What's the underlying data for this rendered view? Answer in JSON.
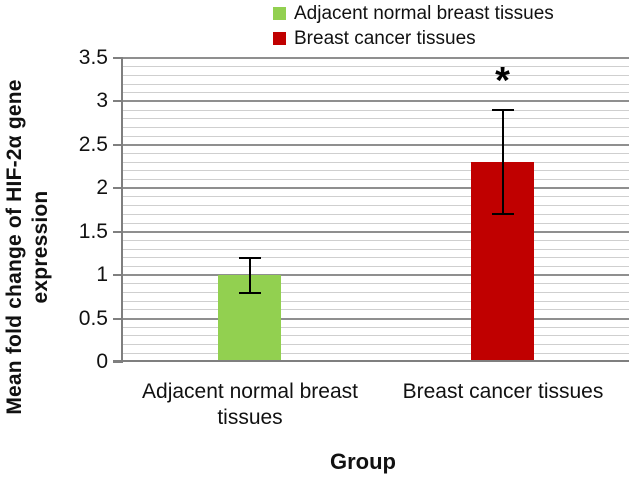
{
  "chart_data": {
    "type": "bar",
    "title": "",
    "xlabel": "Group",
    "ylabel": "Mean fold change of HIF-2α gene expression",
    "ylabel_lines": [
      "Mean fold change of HIF-2α gene",
      "expression"
    ],
    "ylim": [
      0,
      3.5
    ],
    "ytick_step": 0.5,
    "ytick_labels": [
      "0",
      "0.5",
      "1",
      "1.5",
      "2",
      "2.5",
      "3",
      "3.5"
    ],
    "minor_gridline_step": 0.1,
    "grid": "horizontal-major-and-minor",
    "legend_position": "top",
    "categories": [
      "Adjacent normal breast tissues",
      "Breast cancer tissues"
    ],
    "series": [
      {
        "name": "Adjacent normal breast tissues",
        "value": 1.0,
        "error_minus": 0.2,
        "error_plus": 0.2,
        "color": "#92D050",
        "annotation": ""
      },
      {
        "name": "Breast cancer tissues",
        "value": 2.3,
        "error_minus": 0.6,
        "error_plus": 0.6,
        "color": "#C00000",
        "annotation": "*"
      }
    ],
    "colors": {
      "major_gridline": "#8F8F8F",
      "minor_gridline": "#CFCFCF",
      "axis_line": "#7F7F7F",
      "text": "#111111",
      "error_bar": "#000000",
      "background": "#FFFFFF"
    }
  },
  "legend": {
    "items": [
      {
        "label": "Adjacent normal breast tissues",
        "color": "#92D050"
      },
      {
        "label": "Breast cancer tissues",
        "color": "#C00000"
      }
    ]
  }
}
